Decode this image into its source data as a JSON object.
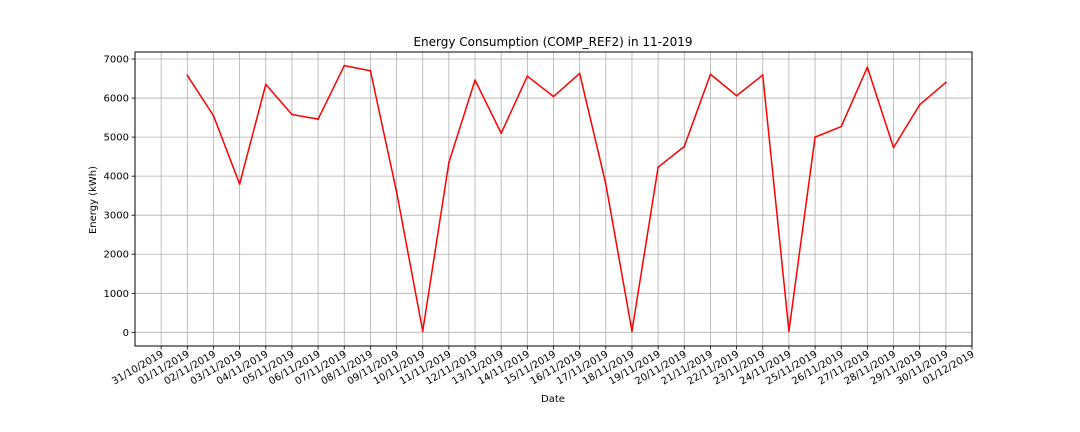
{
  "chart_data": {
    "type": "line",
    "title": "Energy Consumption (COMP_REF2) in 11-2019",
    "xlabel": "Date",
    "ylabel": "Energy (kWh)",
    "ylim": [
      -350,
      7180
    ],
    "xlim": [
      "30/10/2019",
      "01/12/2019"
    ],
    "grid": true,
    "line_color": "#ff0000",
    "x_ticks": [
      "31/10/2019",
      "01/11/2019",
      "02/11/2019",
      "03/11/2019",
      "04/11/2019",
      "05/11/2019",
      "06/11/2019",
      "07/11/2019",
      "08/11/2019",
      "09/11/2019",
      "10/11/2019",
      "11/11/2019",
      "12/11/2019",
      "13/11/2019",
      "14/11/2019",
      "15/11/2019",
      "16/11/2019",
      "17/11/2019",
      "18/11/2019",
      "19/11/2019",
      "20/11/2019",
      "21/11/2019",
      "22/11/2019",
      "23/11/2019",
      "24/11/2019",
      "25/11/2019",
      "26/11/2019",
      "27/11/2019",
      "28/11/2019",
      "29/11/2019",
      "30/11/2019",
      "01/12/2019"
    ],
    "y_ticks": [
      0,
      1000,
      2000,
      3000,
      4000,
      5000,
      6000,
      7000
    ],
    "series": [
      {
        "x": [
          "01/11/2019",
          "02/11/2019",
          "03/11/2019",
          "04/11/2019",
          "05/11/2019",
          "06/11/2019",
          "07/11/2019",
          "08/11/2019",
          "09/11/2019",
          "10/11/2019",
          "11/11/2019",
          "12/11/2019",
          "13/11/2019",
          "14/11/2019",
          "15/11/2019",
          "16/11/2019",
          "17/11/2019",
          "18/11/2019",
          "19/11/2019",
          "20/11/2019",
          "21/11/2019",
          "22/11/2019",
          "23/11/2019",
          "24/11/2019",
          "25/11/2019",
          "26/11/2019",
          "27/11/2019",
          "28/11/2019",
          "29/11/2019",
          "30/11/2019"
        ],
        "values": [
          6580,
          5550,
          3800,
          6350,
          5580,
          5460,
          6830,
          6700,
          3600,
          30,
          4350,
          6460,
          5100,
          6560,
          6040,
          6630,
          3800,
          30,
          4230,
          4760,
          6610,
          6060,
          6590,
          30,
          5000,
          5270,
          6790,
          4730,
          5830,
          6400
        ]
      }
    ]
  }
}
